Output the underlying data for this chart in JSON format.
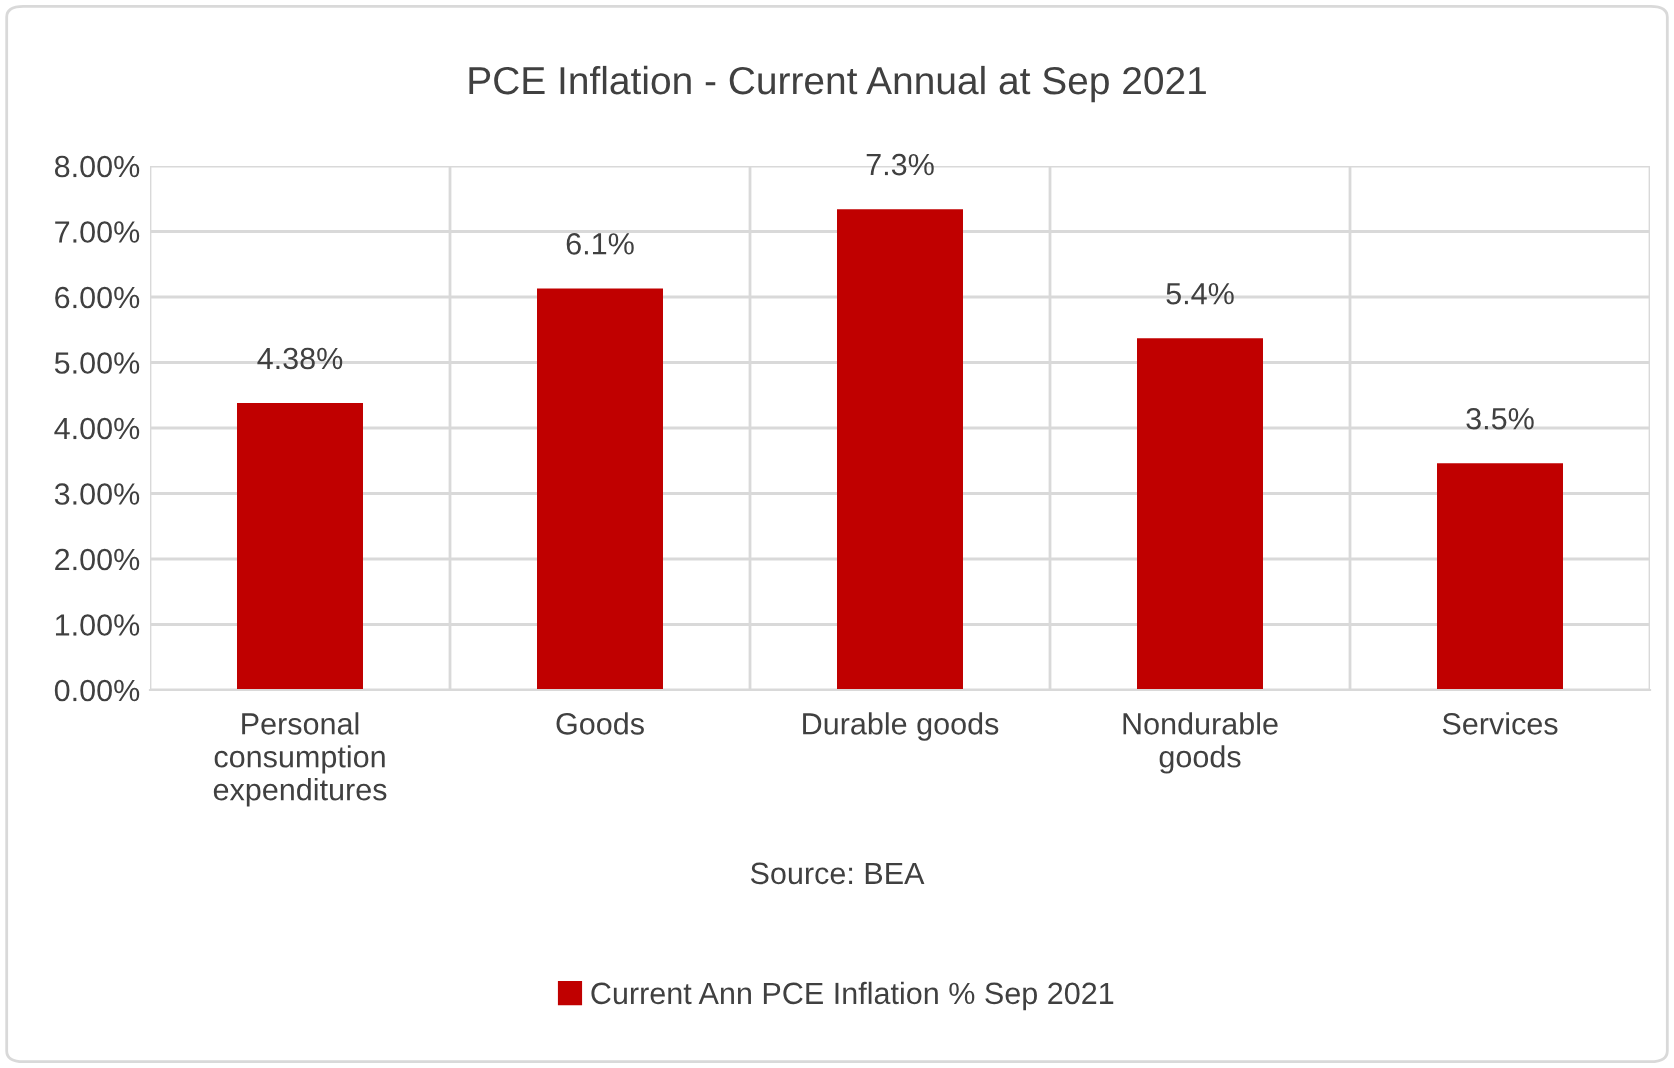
{
  "chart_data": {
    "type": "bar",
    "title": "PCE Inflation - Current Annual at Sep 2021",
    "categories": [
      "Personal\nconsumption\nexpenditures",
      "Goods",
      "Durable goods",
      "Nondurable\ngoods",
      "Services"
    ],
    "series": [
      {
        "name": "Current Ann PCE Inflation % Sep 2021",
        "color": "#c00000",
        "values": [
          4.38,
          6.13,
          7.34,
          5.37,
          3.46
        ],
        "value_labels": [
          "4.38%",
          "6.1%",
          "7.3%",
          "5.4%",
          "3.5%"
        ]
      }
    ],
    "ylim": [
      0,
      8
    ],
    "yticks": [
      {
        "value": 0,
        "label": "0.00%"
      },
      {
        "value": 1,
        "label": "1.00%"
      },
      {
        "value": 2,
        "label": "2.00%"
      },
      {
        "value": 3,
        "label": "3.00%"
      },
      {
        "value": 4,
        "label": "4.00%"
      },
      {
        "value": 5,
        "label": "5.00%"
      },
      {
        "value": 6,
        "label": "6.00%"
      },
      {
        "value": 7,
        "label": "7.00%"
      },
      {
        "value": 8,
        "label": "8.00%"
      }
    ],
    "grid": true,
    "legend": "bottom",
    "annotations": [
      "Source: BEA"
    ]
  }
}
